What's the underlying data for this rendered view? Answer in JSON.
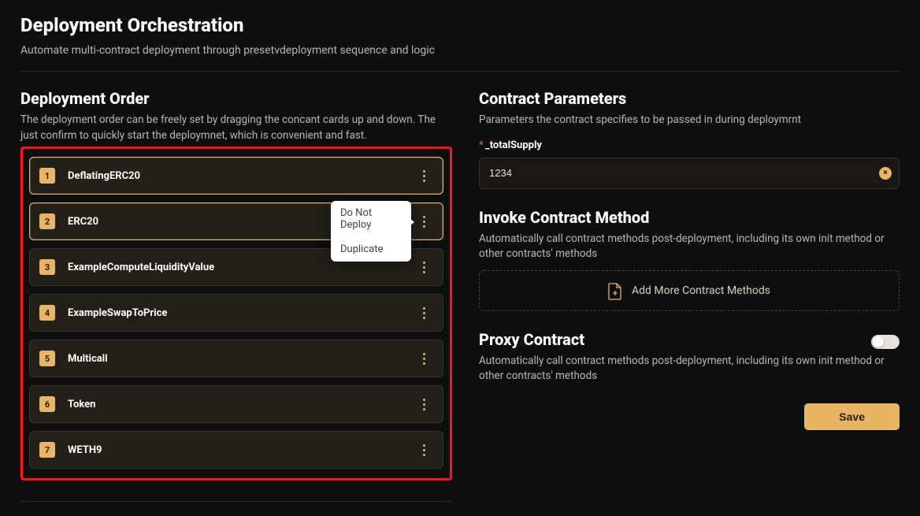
{
  "page": {
    "title": "Deployment Orchestration",
    "subtitle": "Automate multi-contract deployment through presetvdeployment sequence and logic"
  },
  "deployment_order": {
    "title": "Deployment Order",
    "description": "The deployment order can be freely set by dragging the concant cards up and down. The just confirm to quickly start the deploymnet, which is convenient and fast.",
    "highlight_color": "#ff1414",
    "items": [
      {
        "index": "1",
        "name": "DeflatingERC20",
        "selected": true
      },
      {
        "index": "2",
        "name": "ERC20",
        "selected": true
      },
      {
        "index": "3",
        "name": "ExampleComputeLiquidityValue",
        "selected": false
      },
      {
        "index": "4",
        "name": "ExampleSwapToPrice",
        "selected": false
      },
      {
        "index": "5",
        "name": "Multicall",
        "selected": false
      },
      {
        "index": "6",
        "name": "Token",
        "selected": false
      },
      {
        "index": "7",
        "name": "WETH9",
        "selected": false
      }
    ],
    "popup": {
      "target_index": 1,
      "options": [
        "Do Not Deploy",
        "Duplicate"
      ]
    }
  },
  "contract_parameters": {
    "title": "Contract Parameters",
    "description": "Parameters the contract specifies to be passed in during deploymrnt",
    "fields": [
      {
        "label": "_totalSupply",
        "required": true,
        "value": "1234"
      }
    ]
  },
  "invoke_method": {
    "title": "Invoke Contract Method",
    "description": "Automatically call contract methods post-deployment, including its own init method or other contracts' methods",
    "add_label": "Add More Contract Methods"
  },
  "proxy_contract": {
    "title": "Proxy Contract",
    "description": "Automatically call contract methods post-deployment, including its own init method or other contracts' methods",
    "enabled": false
  },
  "actions": {
    "save": "Save"
  },
  "colors": {
    "accent": "#e8b565",
    "bg": "#0e0e0e",
    "card": "#222018",
    "border": "#3a352a",
    "text_muted": "#b7b7b7"
  }
}
